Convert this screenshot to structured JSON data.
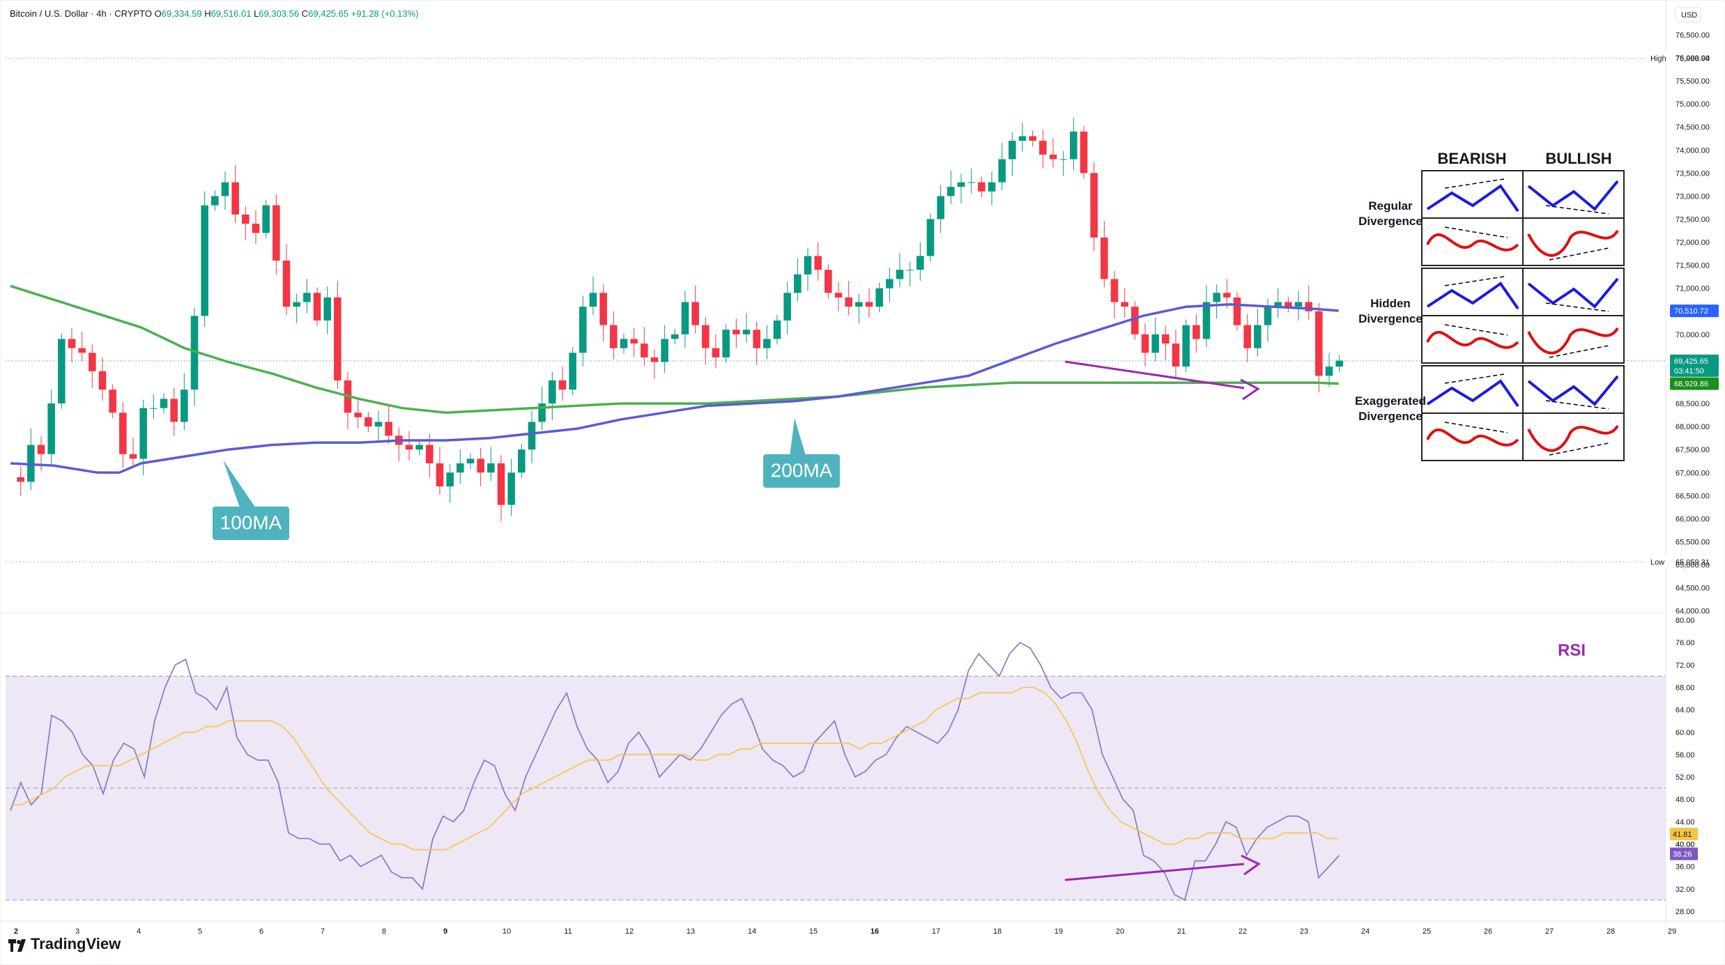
{
  "header": {
    "symbol": "Bitcoin / U.S. Dollar · 4h · CRYPTO",
    "o_label": "O",
    "o_value": "69,334.59",
    "h_label": "H",
    "h_value": "69,516.01",
    "l_label": "L",
    "l_value": "69,303.56",
    "c_label": "C",
    "c_value": "69,425.65",
    "change": "+91.28 (+0.13%)"
  },
  "brand": {
    "name": "TradingView"
  },
  "colors": {
    "up": "#089981",
    "down": "#f23645",
    "ma100": "#5b5bd6",
    "ma200": "#4caf50",
    "rsi": "#7e74c4",
    "rsi_ma": "#f5c542",
    "rsi_band": "#ede7f6",
    "divergence": "#9c27b0",
    "callout": "#4fb3bf",
    "bearish_blue": "#1a1ae6",
    "bullish_red": "#e01010"
  },
  "chart_data": {
    "type": "candlestick",
    "currency": "USD",
    "x_axis": {
      "ticks": [
        "2",
        "3",
        "4",
        "5",
        "6",
        "7",
        "8",
        "9",
        "10",
        "11",
        "12",
        "13",
        "14",
        "15",
        "16",
        "17",
        "18",
        "19",
        "20",
        "21",
        "22",
        "23",
        "24",
        "25",
        "26",
        "27",
        "28",
        "29"
      ],
      "bold_ticks": [
        "2",
        "9",
        "16"
      ]
    },
    "price_axis": {
      "ticks": [
        "76,500.00",
        "76,000.00",
        "75,500.00",
        "75,000.00",
        "74,500.00",
        "74,000.00",
        "73,500.00",
        "73,000.00",
        "72,500.00",
        "72,000.00",
        "71,500.00",
        "71,000.00",
        "70,500.00",
        "70,000.00",
        "69,500.00",
        "69,000.00",
        "68,500.00",
        "68,000.00",
        "67,500.00",
        "67,000.00",
        "66,500.00",
        "66,000.00",
        "65,500.00",
        "65,000.00",
        "64,500.00",
        "64,000.00"
      ],
      "ylim": [
        63950,
        76650
      ]
    },
    "markers": {
      "high": {
        "label": "High",
        "value": "75,988.94",
        "y": 75988.94
      },
      "low": {
        "label": "Low",
        "value": "65,059.31",
        "y": 65059.31
      },
      "last_price": {
        "value": "69,425.65",
        "countdown": "03:41:50",
        "y": 69425.65
      },
      "ma100_tag": {
        "value": "70,510.72",
        "y": 70510.72
      },
      "ma200_tag": {
        "value": "68,929.86",
        "y": 68929.86
      }
    },
    "candles": [
      [
        69334,
        69516,
        69303,
        69425
      ]
    ],
    "ma100": [
      [
        0,
        67200
      ],
      [
        4,
        67150
      ],
      [
        8,
        67000
      ],
      [
        10,
        67000
      ],
      [
        12,
        67200
      ],
      [
        16,
        67350
      ],
      [
        20,
        67500
      ],
      [
        24,
        67600
      ],
      [
        28,
        67650
      ],
      [
        32,
        67650
      ],
      [
        36,
        67700
      ],
      [
        40,
        67700
      ],
      [
        44,
        67750
      ],
      [
        48,
        67850
      ],
      [
        52,
        67950
      ],
      [
        56,
        68150
      ],
      [
        60,
        68300
      ],
      [
        64,
        68450
      ],
      [
        68,
        68500
      ],
      [
        72,
        68550
      ],
      [
        76,
        68650
      ],
      [
        80,
        68800
      ],
      [
        84,
        68950
      ],
      [
        88,
        69100
      ],
      [
        92,
        69450
      ],
      [
        96,
        69800
      ],
      [
        100,
        70100
      ],
      [
        104,
        70400
      ],
      [
        108,
        70600
      ],
      [
        112,
        70650
      ],
      [
        116,
        70600
      ],
      [
        120,
        70550
      ],
      [
        122,
        70511
      ]
    ],
    "ma200": [
      [
        0,
        71050
      ],
      [
        6,
        70600
      ],
      [
        12,
        70150
      ],
      [
        16,
        69700
      ],
      [
        20,
        69400
      ],
      [
        24,
        69150
      ],
      [
        28,
        68850
      ],
      [
        32,
        68600
      ],
      [
        36,
        68400
      ],
      [
        40,
        68300
      ],
      [
        44,
        68350
      ],
      [
        48,
        68400
      ],
      [
        52,
        68450
      ],
      [
        56,
        68500
      ],
      [
        60,
        68500
      ],
      [
        64,
        68500
      ],
      [
        68,
        68550
      ],
      [
        72,
        68600
      ],
      [
        76,
        68650
      ],
      [
        80,
        68750
      ],
      [
        84,
        68850
      ],
      [
        88,
        68900
      ],
      [
        92,
        68950
      ],
      [
        96,
        68950
      ],
      [
        100,
        68950
      ],
      [
        104,
        68950
      ],
      [
        108,
        68950
      ],
      [
        112,
        68950
      ],
      [
        116,
        68950
      ],
      [
        120,
        68950
      ],
      [
        122,
        68930
      ]
    ],
    "callouts": [
      {
        "label": "100MA"
      },
      {
        "label": "200MA"
      }
    ],
    "rsi": {
      "title": "RSI",
      "axis_ticks": [
        "80.00",
        "76.00",
        "72.00",
        "68.00",
        "64.00",
        "60.00",
        "56.00",
        "52.00",
        "48.00",
        "44.00",
        "40.00",
        "36.00",
        "32.00",
        "28.00"
      ],
      "ylim": [
        26.5,
        80.5
      ],
      "upper_band": 70,
      "mid_band": 50,
      "lower_band": 30,
      "value_tag": "38.26",
      "ma_tag": "41.81",
      "band_tag": "40.00",
      "values": [
        46,
        51,
        47,
        49,
        63,
        62,
        60,
        56,
        54,
        49,
        55,
        58,
        57,
        52,
        62,
        68,
        72,
        73,
        67,
        66,
        64,
        68,
        59,
        56,
        55,
        55,
        51,
        42,
        41,
        41,
        40,
        40,
        37,
        38,
        36,
        37,
        38,
        35,
        34,
        34,
        32,
        41,
        45,
        44,
        46,
        51,
        55,
        54,
        49,
        46,
        52,
        56,
        60,
        64,
        67,
        61,
        57,
        55,
        51,
        53,
        58,
        60,
        57,
        52,
        54,
        56,
        55,
        57,
        60,
        63,
        65,
        66,
        62,
        57,
        55,
        54,
        52,
        53,
        58,
        60,
        62,
        56,
        52,
        53,
        55,
        56,
        59,
        61,
        60,
        59,
        58,
        60,
        64,
        71,
        74,
        72,
        70,
        74,
        76,
        75,
        72,
        68,
        66,
        67,
        67,
        64,
        56,
        52,
        48,
        46,
        38,
        37,
        35,
        31,
        30,
        37,
        37,
        40,
        44,
        43,
        38,
        41,
        43,
        44,
        45,
        45,
        44,
        34,
        36,
        38
      ],
      "ma_values": [
        47,
        47,
        48,
        49,
        50,
        52,
        53,
        54,
        54,
        54,
        54,
        55,
        56,
        57,
        58,
        59,
        60,
        60,
        61,
        61,
        62,
        62,
        62,
        62,
        62,
        61,
        59,
        56,
        53,
        50,
        48,
        46,
        44,
        42,
        41,
        40,
        40,
        39,
        39,
        39,
        39,
        40,
        41,
        42,
        43,
        45,
        47,
        49,
        50,
        51,
        52,
        53,
        54,
        55,
        55,
        55,
        56,
        56,
        56,
        56,
        56,
        56,
        56,
        55,
        55,
        56,
        56,
        57,
        57,
        58,
        58,
        58,
        58,
        58,
        58,
        58,
        58,
        58,
        57,
        58,
        58,
        59,
        60,
        61,
        62,
        64,
        65,
        66,
        66,
        67,
        67,
        67,
        67,
        68,
        68,
        67,
        65,
        62,
        58,
        53,
        49,
        46,
        44,
        43,
        42,
        41,
        40,
        40,
        41,
        41,
        42,
        42,
        42,
        41,
        41,
        41,
        41,
        42,
        42,
        42,
        42,
        41,
        41
      ]
    },
    "legend_box": {
      "col_headers": [
        "BEARISH",
        "BULLISH"
      ],
      "row_labels": [
        [
          "Regular",
          "Divergence"
        ],
        [
          "Hidden",
          "Divergence"
        ],
        [
          "Exaggerated",
          "Divergence"
        ]
      ]
    }
  }
}
